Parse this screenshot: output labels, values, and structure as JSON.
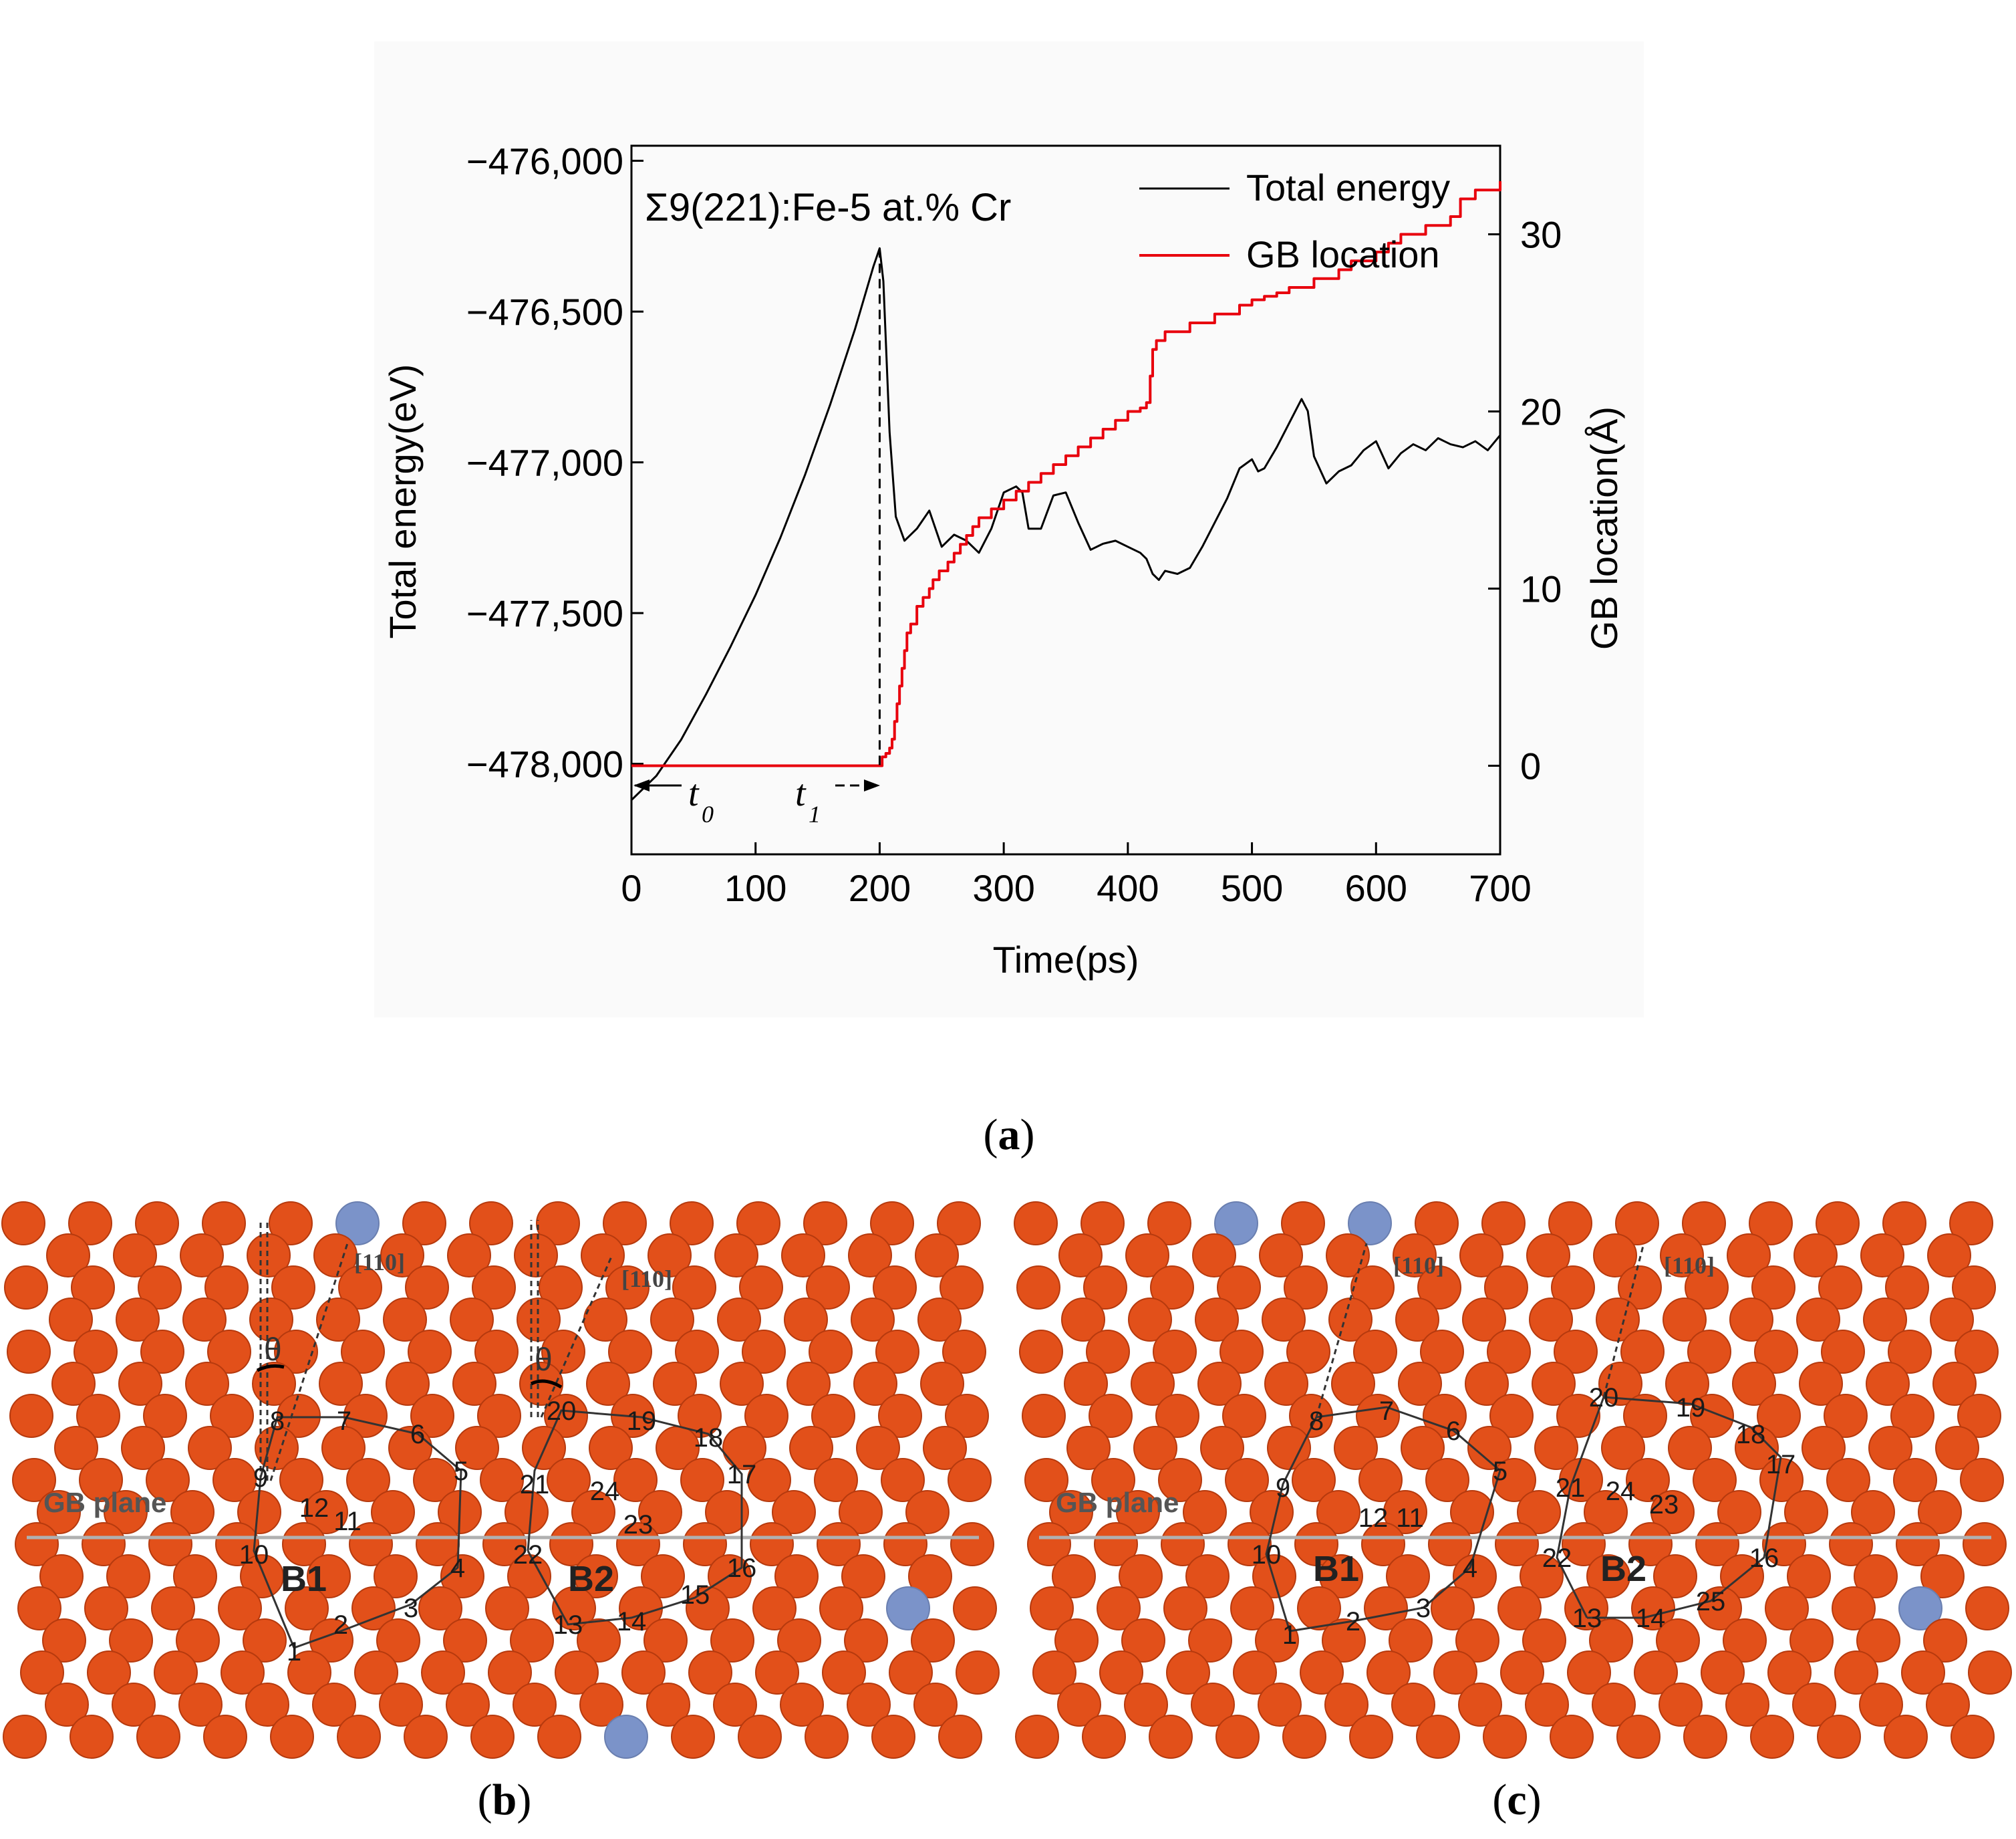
{
  "panel_a": {
    "caption": "a",
    "chart_data": {
      "type": "line",
      "title": "Σ9(221):Fe-5 at.% Cr",
      "xlabel": "Time(ps)",
      "ylabel": "Total energy(eV)",
      "y2label": "GB location(Å)",
      "xlim": [
        0,
        700
      ],
      "ylim": [
        -478300,
        -475950
      ],
      "y2lim": [
        -5,
        35
      ],
      "xticks": [
        "0",
        "100",
        "200",
        "300",
        "400",
        "500",
        "600",
        "700"
      ],
      "yticks": [
        "−476,000",
        "−476,500",
        "−477,000",
        "−477,500",
        "−478,000"
      ],
      "y2ticks": [
        "0",
        "10",
        "20",
        "30"
      ],
      "legend": {
        "position": "top-right",
        "entries": [
          "Total energy",
          "GB location"
        ]
      },
      "annotations": {
        "t0": "t",
        "t0_sub": "0",
        "t1": "t",
        "t1_sub": "1"
      },
      "colors": {
        "energy": "#000000",
        "gb": "#e8000d"
      },
      "series": [
        {
          "name": "Total energy",
          "axis": "left",
          "x": [
            0,
            20,
            40,
            60,
            80,
            100,
            120,
            140,
            160,
            180,
            195,
            200,
            203,
            208,
            213,
            220,
            230,
            240,
            250,
            260,
            270,
            280,
            290,
            300,
            310,
            315,
            320,
            330,
            340,
            350,
            360,
            370,
            380,
            390,
            400,
            410,
            415,
            420,
            425,
            430,
            440,
            450,
            460,
            470,
            480,
            490,
            500,
            505,
            510,
            520,
            530,
            540,
            545,
            550,
            560,
            570,
            580,
            590,
            600,
            610,
            620,
            630,
            640,
            650,
            660,
            670,
            680,
            690,
            700
          ],
          "y": [
            -478120,
            -478040,
            -477920,
            -477770,
            -477610,
            -477440,
            -477250,
            -477040,
            -476810,
            -476560,
            -476350,
            -476290,
            -476400,
            -476900,
            -477180,
            -477260,
            -477220,
            -477160,
            -477280,
            -477240,
            -477260,
            -477300,
            -477220,
            -477100,
            -477080,
            -477100,
            -477220,
            -477220,
            -477110,
            -477100,
            -477200,
            -477290,
            -477270,
            -477260,
            -477280,
            -477300,
            -477320,
            -477370,
            -477390,
            -477360,
            -477370,
            -477350,
            -477280,
            -477200,
            -477120,
            -477020,
            -476990,
            -477030,
            -477020,
            -476950,
            -476870,
            -476790,
            -476830,
            -476980,
            -477070,
            -477030,
            -477010,
            -476960,
            -476930,
            -477020,
            -476970,
            -476940,
            -476960,
            -476920,
            -476940,
            -476950,
            -476930,
            -476960,
            -476910
          ]
        },
        {
          "name": "GB location",
          "axis": "right",
          "x": [
            0,
            200,
            202,
            205,
            208,
            210,
            212,
            214,
            216,
            218,
            220,
            222,
            225,
            230,
            235,
            240,
            243,
            245,
            248,
            250,
            255,
            260,
            265,
            270,
            275,
            280,
            290,
            300,
            310,
            320,
            330,
            340,
            350,
            360,
            370,
            380,
            390,
            400,
            410,
            415,
            418,
            420,
            423,
            430,
            440,
            450,
            460,
            470,
            480,
            490,
            500,
            510,
            520,
            530,
            540,
            550,
            560,
            570,
            580,
            590,
            600,
            610,
            620,
            630,
            640,
            650,
            660,
            665,
            668,
            670,
            680,
            690,
            700
          ],
          "y": [
            0,
            0,
            0.5,
            0.7,
            1,
            1.5,
            2.5,
            3.5,
            4.5,
            5.5,
            6.5,
            7.5,
            8,
            9,
            9.5,
            10,
            10.5,
            10.5,
            11,
            11,
            11.5,
            12,
            12.5,
            13,
            13.5,
            14,
            14.5,
            15,
            15.5,
            16,
            16.5,
            17,
            17.5,
            18,
            18.5,
            19,
            19.5,
            20,
            20.2,
            20.5,
            22,
            23.5,
            24,
            24.5,
            24.5,
            25,
            25,
            25.5,
            25.5,
            26,
            26.3,
            26.5,
            26.7,
            27,
            27,
            27.5,
            27.5,
            28,
            28.5,
            28.5,
            29,
            29.5,
            30,
            30,
            30.5,
            30.5,
            31,
            31,
            32,
            32,
            32.5,
            32.5,
            33
          ]
        }
      ],
      "dashed_line_x": 200
    }
  },
  "panel_b": {
    "caption": "b",
    "gb_plane_label": "GB plane",
    "direction_label_1": "[110]",
    "direction_label_2": "[110]",
    "theta_1": "θ",
    "theta_2": "θ",
    "unit_b1": "B1",
    "unit_b2": "B2",
    "atom_numbers": [
      "1",
      "2",
      "3",
      "4",
      "5",
      "6",
      "7",
      "8",
      "9",
      "10",
      "11",
      "12",
      "13",
      "14",
      "15",
      "16",
      "17",
      "18",
      "19",
      "20",
      "21",
      "22",
      "23",
      "24"
    ]
  },
  "panel_c": {
    "caption": "c",
    "gb_plane_label": "GB plane",
    "direction_label_1": "[110]",
    "direction_label_2": "[110]",
    "unit_b1": "B1",
    "unit_b2": "B2",
    "atom_numbers": [
      "1",
      "2",
      "3",
      "4",
      "5",
      "6",
      "7",
      "8",
      "9",
      "10",
      "11",
      "12",
      "13",
      "14",
      "16",
      "17",
      "18",
      "19",
      "20",
      "21",
      "22",
      "23",
      "24",
      "25"
    ]
  },
  "colors": {
    "fe_atom": "#e2501a",
    "cr_atom": "#7b93c9",
    "axes": "#000000"
  }
}
